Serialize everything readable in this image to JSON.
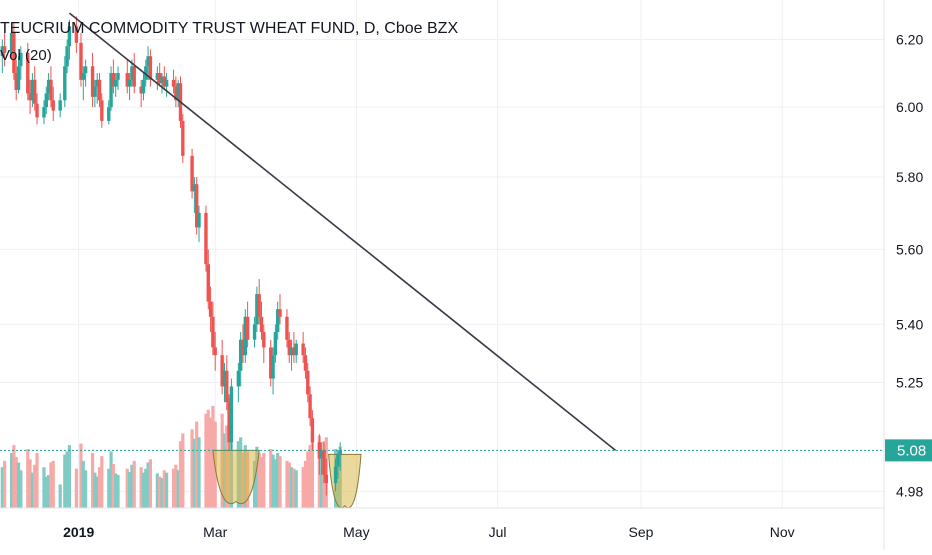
{
  "chart_title": "TEUCRIUM COMMODITY TRUST WHEAT FUND, D, Cboe BZX",
  "indicator_label": "Vol (20)",
  "colors": {
    "up": "#26a69a",
    "down": "#ef5350",
    "volume_up": "#80cbc4",
    "volume_down": "#f7a9a7",
    "trendline": "#363a45",
    "last_price": "#26a69a",
    "highlight_fill": "#d9b84d"
  },
  "chart_data": {
    "type": "candlestick",
    "y_axis": {
      "position": "right",
      "ticks": [
        6.2,
        6.0,
        5.8,
        5.6,
        5.4,
        5.25,
        4.98
      ],
      "tick_labels": [
        "6.20",
        "6.00",
        "5.80",
        "5.60",
        "5.40",
        "5.25",
        "4.98"
      ],
      "scale": "log",
      "range": [
        4.94,
        6.32
      ]
    },
    "x_axis": {
      "ticks": [
        "2019-01-01",
        "2019-03-01",
        "2019-05-01",
        "2019-07-01",
        "2019-09-01",
        "2019-11-01"
      ],
      "tick_labels": [
        "2019",
        "Mar",
        "May",
        "Jul",
        "Sep",
        "Nov"
      ],
      "bold_ticks": [
        "2019"
      ],
      "range": [
        "2018-11-28",
        "2019-12-15"
      ]
    },
    "last_price": 5.08,
    "last_price_label": "5.08",
    "trendline": {
      "start": [
        "2018-12-28",
        6.28
      ],
      "end": [
        "2019-08-21",
        5.08
      ]
    },
    "highlights": [
      {
        "type": "bowl",
        "from": "2019-02-28",
        "to": "2019-03-20",
        "top": 5.08,
        "bottom": 4.98
      },
      {
        "type": "bowl",
        "from": "2019-04-19",
        "to": "2019-05-03",
        "top": 5.07,
        "bottom": 4.97
      }
    ],
    "ohlcv": [
      [
        "2018-11-29",
        6.15,
        6.2,
        6.1,
        6.18,
        52000
      ],
      [
        "2018-11-30",
        6.18,
        6.22,
        6.12,
        6.16,
        60000
      ],
      [
        "2018-12-03",
        6.16,
        6.24,
        6.14,
        6.22,
        70000
      ],
      [
        "2018-12-04",
        6.22,
        6.25,
        6.08,
        6.1,
        80000
      ],
      [
        "2018-12-05",
        6.1,
        6.14,
        6.02,
        6.05,
        65000
      ],
      [
        "2018-12-06",
        6.05,
        6.15,
        6.04,
        6.12,
        58000
      ],
      [
        "2018-12-07",
        6.12,
        6.18,
        6.08,
        6.16,
        48000
      ],
      [
        "2018-12-10",
        6.16,
        6.19,
        6.02,
        6.04,
        75000
      ],
      [
        "2018-12-11",
        6.04,
        6.08,
        5.98,
        6.02,
        62000
      ],
      [
        "2018-12-12",
        6.02,
        6.1,
        6.0,
        6.08,
        45000
      ],
      [
        "2018-12-13",
        6.08,
        6.12,
        5.99,
        6.01,
        55000
      ],
      [
        "2018-12-14",
        6.01,
        6.04,
        5.95,
        5.97,
        70000
      ],
      [
        "2018-12-17",
        5.97,
        6.02,
        5.95,
        6.0,
        52000
      ],
      [
        "2018-12-18",
        6.0,
        6.06,
        5.98,
        6.04,
        40000
      ],
      [
        "2018-12-19",
        6.04,
        6.1,
        6.02,
        6.08,
        42000
      ],
      [
        "2018-12-20",
        6.08,
        6.12,
        6.0,
        6.02,
        58000
      ],
      [
        "2018-12-21",
        6.02,
        6.06,
        5.96,
        5.99,
        60000
      ],
      [
        "2018-12-24",
        5.99,
        6.04,
        5.97,
        6.02,
        30000
      ],
      [
        "2018-12-26",
        6.02,
        6.15,
        6.0,
        6.12,
        68000
      ],
      [
        "2018-12-27",
        6.12,
        6.2,
        6.1,
        6.18,
        72000
      ],
      [
        "2018-12-28",
        6.18,
        6.26,
        6.14,
        6.24,
        80000
      ],
      [
        "2018-12-31",
        6.24,
        6.27,
        6.16,
        6.19,
        50000
      ],
      [
        "2019-01-02",
        6.19,
        6.22,
        6.06,
        6.08,
        82000
      ],
      [
        "2019-01-03",
        6.08,
        6.12,
        6.02,
        6.1,
        60000
      ],
      [
        "2019-01-04",
        6.1,
        6.14,
        6.06,
        6.12,
        48000
      ],
      [
        "2019-01-07",
        6.12,
        6.16,
        6.0,
        6.03,
        70000
      ],
      [
        "2019-01-08",
        6.03,
        6.08,
        6.0,
        6.06,
        45000
      ],
      [
        "2019-01-09",
        6.06,
        6.1,
        6.01,
        6.08,
        40000
      ],
      [
        "2019-01-10",
        6.08,
        6.1,
        6.0,
        6.02,
        52000
      ],
      [
        "2019-01-11",
        6.02,
        6.04,
        5.94,
        5.96,
        66000
      ],
      [
        "2019-01-14",
        5.96,
        6.02,
        5.95,
        6.0,
        50000
      ],
      [
        "2019-01-15",
        6.0,
        6.12,
        5.99,
        6.1,
        72000
      ],
      [
        "2019-01-16",
        6.1,
        6.14,
        6.04,
        6.06,
        56000
      ],
      [
        "2019-01-17",
        6.06,
        6.1,
        6.03,
        6.08,
        44000
      ],
      [
        "2019-01-18",
        6.08,
        6.12,
        6.05,
        6.1,
        42000
      ],
      [
        "2019-01-22",
        6.1,
        6.14,
        6.04,
        6.06,
        50000
      ],
      [
        "2019-01-23",
        6.06,
        6.1,
        6.02,
        6.08,
        46000
      ],
      [
        "2019-01-24",
        6.08,
        6.14,
        6.06,
        6.12,
        55000
      ],
      [
        "2019-01-25",
        6.12,
        6.16,
        6.04,
        6.06,
        60000
      ],
      [
        "2019-01-28",
        6.06,
        6.08,
        6.0,
        6.04,
        52000
      ],
      [
        "2019-01-29",
        6.04,
        6.1,
        6.02,
        6.08,
        45000
      ],
      [
        "2019-01-30",
        6.08,
        6.14,
        6.06,
        6.12,
        50000
      ],
      [
        "2019-01-31",
        6.12,
        6.18,
        6.08,
        6.15,
        58000
      ],
      [
        "2019-02-01",
        6.15,
        6.17,
        6.06,
        6.08,
        62000
      ],
      [
        "2019-02-04",
        6.08,
        6.12,
        6.05,
        6.1,
        44000
      ],
      [
        "2019-02-05",
        6.1,
        6.13,
        6.06,
        6.07,
        40000
      ],
      [
        "2019-02-06",
        6.07,
        6.1,
        6.04,
        6.09,
        38000
      ],
      [
        "2019-02-07",
        6.09,
        6.12,
        6.05,
        6.06,
        48000
      ],
      [
        "2019-02-08",
        6.06,
        6.1,
        6.03,
        6.08,
        45000
      ],
      [
        "2019-02-11",
        6.08,
        6.11,
        6.04,
        6.06,
        50000
      ],
      [
        "2019-02-12",
        6.06,
        6.09,
        6.0,
        6.02,
        55000
      ],
      [
        "2019-02-13",
        6.02,
        6.08,
        6.0,
        6.07,
        48000
      ],
      [
        "2019-02-14",
        6.07,
        6.09,
        5.94,
        5.96,
        85000
      ],
      [
        "2019-02-15",
        5.96,
        5.98,
        5.84,
        5.86,
        95000
      ],
      [
        "2019-02-19",
        5.86,
        5.88,
        5.74,
        5.76,
        100000
      ],
      [
        "2019-02-20",
        5.76,
        5.8,
        5.7,
        5.78,
        88000
      ],
      [
        "2019-02-21",
        5.78,
        5.8,
        5.64,
        5.66,
        110000
      ],
      [
        "2019-02-22",
        5.66,
        5.72,
        5.62,
        5.7,
        90000
      ],
      [
        "2019-02-25",
        5.7,
        5.72,
        5.54,
        5.56,
        120000
      ],
      [
        "2019-02-26",
        5.56,
        5.6,
        5.44,
        5.46,
        125000
      ],
      [
        "2019-02-27",
        5.46,
        5.5,
        5.38,
        5.42,
        115000
      ],
      [
        "2019-02-28",
        5.42,
        5.46,
        5.32,
        5.34,
        130000
      ],
      [
        "2019-03-01",
        5.34,
        5.38,
        5.28,
        5.32,
        110000
      ],
      [
        "2019-03-04",
        5.32,
        5.36,
        5.22,
        5.24,
        120000
      ],
      [
        "2019-03-05",
        5.24,
        5.3,
        5.2,
        5.28,
        95000
      ],
      [
        "2019-03-06",
        5.28,
        5.32,
        5.18,
        5.2,
        105000
      ],
      [
        "2019-03-07",
        5.2,
        5.22,
        5.08,
        5.1,
        140000
      ],
      [
        "2019-03-08",
        5.1,
        5.26,
        5.08,
        5.24,
        130000
      ],
      [
        "2019-03-11",
        5.24,
        5.3,
        5.2,
        5.28,
        85000
      ],
      [
        "2019-03-12",
        5.28,
        5.38,
        5.24,
        5.36,
        90000
      ],
      [
        "2019-03-13",
        5.36,
        5.4,
        5.3,
        5.32,
        70000
      ],
      [
        "2019-03-14",
        5.32,
        5.44,
        5.3,
        5.42,
        80000
      ],
      [
        "2019-03-15",
        5.42,
        5.46,
        5.34,
        5.36,
        72000
      ],
      [
        "2019-03-18",
        5.36,
        5.42,
        5.34,
        5.4,
        60000
      ],
      [
        "2019-03-19",
        5.4,
        5.5,
        5.38,
        5.48,
        78000
      ],
      [
        "2019-03-20",
        5.48,
        5.52,
        5.4,
        5.42,
        70000
      ],
      [
        "2019-03-21",
        5.42,
        5.46,
        5.36,
        5.38,
        65000
      ],
      [
        "2019-03-22",
        5.38,
        5.4,
        5.3,
        5.34,
        70000
      ],
      [
        "2019-03-25",
        5.34,
        5.36,
        5.24,
        5.26,
        75000
      ],
      [
        "2019-03-26",
        5.26,
        5.34,
        5.22,
        5.32,
        68000
      ],
      [
        "2019-03-27",
        5.32,
        5.4,
        5.3,
        5.38,
        62000
      ],
      [
        "2019-03-28",
        5.38,
        5.46,
        5.36,
        5.44,
        70000
      ],
      [
        "2019-03-29",
        5.44,
        5.48,
        5.4,
        5.42,
        66000
      ],
      [
        "2019-04-01",
        5.42,
        5.44,
        5.34,
        5.36,
        60000
      ],
      [
        "2019-04-02",
        5.36,
        5.38,
        5.3,
        5.32,
        58000
      ],
      [
        "2019-04-03",
        5.32,
        5.36,
        5.28,
        5.34,
        52000
      ],
      [
        "2019-04-04",
        5.34,
        5.38,
        5.3,
        5.32,
        50000
      ],
      [
        "2019-04-05",
        5.32,
        5.36,
        5.3,
        5.35,
        48000
      ],
      [
        "2019-04-08",
        5.35,
        5.38,
        5.3,
        5.32,
        52000
      ],
      [
        "2019-04-09",
        5.32,
        5.34,
        5.26,
        5.28,
        60000
      ],
      [
        "2019-04-10",
        5.28,
        5.3,
        5.2,
        5.22,
        72000
      ],
      [
        "2019-04-11",
        5.22,
        5.24,
        5.14,
        5.16,
        80000
      ],
      [
        "2019-04-12",
        5.16,
        5.18,
        5.08,
        5.1,
        88000
      ],
      [
        "2019-04-15",
        5.1,
        5.12,
        5.02,
        5.06,
        92000
      ],
      [
        "2019-04-16",
        5.06,
        5.1,
        5.02,
        5.08,
        70000
      ],
      [
        "2019-04-17",
        5.08,
        5.1,
        5.0,
        5.02,
        85000
      ],
      [
        "2019-04-18",
        5.02,
        5.06,
        4.97,
        5.0,
        90000
      ],
      [
        "2019-04-22",
        5.0,
        5.06,
        4.98,
        5.04,
        75000
      ],
      [
        "2019-04-23",
        5.04,
        5.08,
        5.01,
        5.07,
        70000
      ],
      [
        "2019-04-24",
        5.07,
        5.1,
        5.03,
        5.08,
        78000
      ]
    ]
  }
}
